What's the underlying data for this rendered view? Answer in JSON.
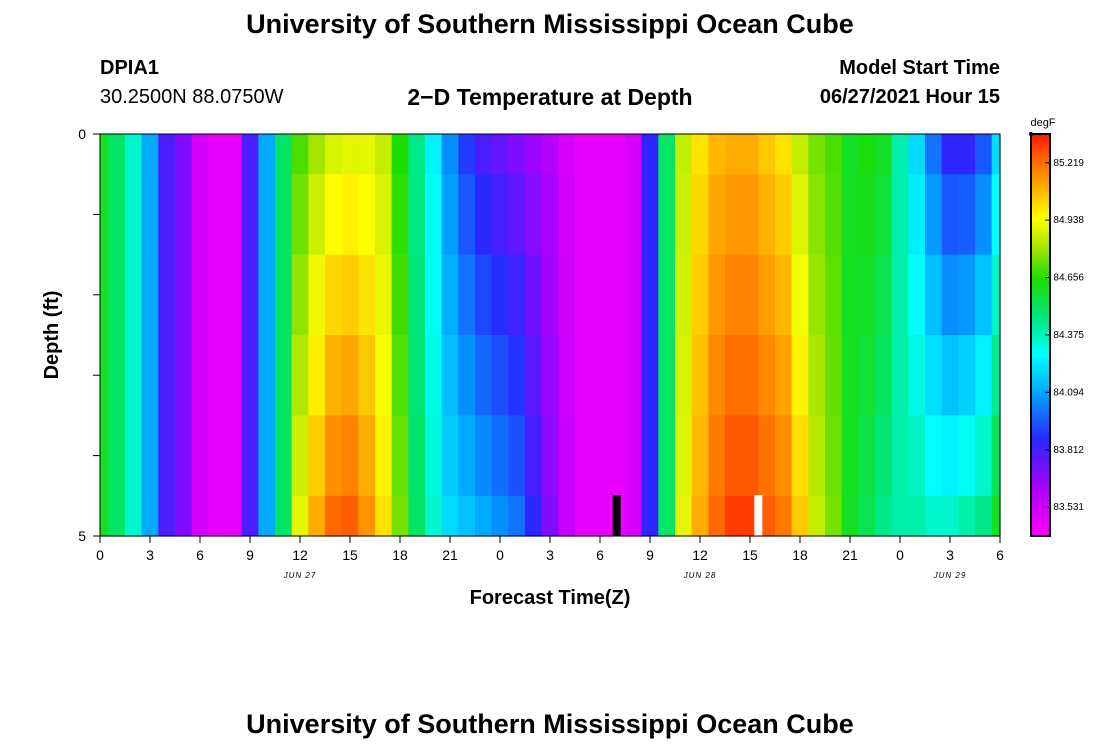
{
  "title_top": "University of Southern Mississippi Ocean Cube",
  "title_bottom": "University of Southern Mississippi Ocean Cube",
  "station": {
    "name": "DPIA1",
    "coords": "30.2500N  88.0750W"
  },
  "model_start": {
    "label": "Model Start Time",
    "value": "06/27/2021 Hour 15"
  },
  "chart_data": {
    "type": "heatmap",
    "title": "2−D Temperature at Depth",
    "xlabel": "Forecast Time(Z)",
    "ylabel": "Depth (ft)",
    "units": "degF",
    "x_start_hour_utc": 0,
    "x_hours_total": 54,
    "x_ticks": [
      "0",
      "3",
      "6",
      "9",
      "12",
      "15",
      "18",
      "21",
      "0",
      "3",
      "6",
      "9",
      "12",
      "15",
      "18",
      "21",
      "0",
      "3",
      "6"
    ],
    "x_tick_hours": [
      0,
      3,
      6,
      9,
      12,
      15,
      18,
      21,
      24,
      27,
      30,
      33,
      36,
      39,
      42,
      45,
      48,
      51,
      54
    ],
    "date_labels": [
      {
        "text": "JUN 27",
        "hour": 12
      },
      {
        "text": "JUN 28",
        "hour": 36
      },
      {
        "text": "JUN 29",
        "hour": 51
      }
    ],
    "y_tick_labels": [
      "0",
      "5"
    ],
    "ylim": [
      0,
      5
    ],
    "colorbar": {
      "ticks": [
        "85.219",
        "84.938",
        "84.656",
        "84.375",
        "84.094",
        "83.812",
        "83.531"
      ],
      "tick_values": [
        85.219,
        84.938,
        84.656,
        84.375,
        84.094,
        83.812,
        83.531
      ],
      "vmin": 83.39,
      "vmax": 85.36
    },
    "markers": [
      {
        "hour": 31.0,
        "color": "#000000"
      },
      {
        "hour": 39.5,
        "color": "#ffffff"
      }
    ],
    "depth_layers": [
      "0-0.5",
      "0.5-1.5",
      "1.5-2.5",
      "2.5-3.5",
      "3.5-4.5",
      "4.5-5"
    ],
    "profile_hours": [
      0,
      1,
      2,
      3,
      4,
      5,
      6,
      7,
      8,
      9,
      10,
      11,
      12,
      13,
      14,
      15,
      16,
      17,
      18,
      19,
      20,
      21,
      22,
      23,
      24,
      25,
      26,
      27,
      28,
      29,
      30,
      31,
      32,
      33,
      34,
      35,
      36,
      37,
      38,
      39,
      40,
      41,
      42,
      43,
      44,
      45,
      46,
      47,
      48,
      49,
      50,
      51,
      52,
      53,
      54
    ],
    "profile_base": [
      84.6,
      84.5,
      84.35,
      84.1,
      83.8,
      83.7,
      83.5,
      83.45,
      83.45,
      83.8,
      84.1,
      84.5,
      84.75,
      84.9,
      84.98,
      85.0,
      84.95,
      84.85,
      84.65,
      84.4,
      84.2,
      84.0,
      83.9,
      83.8,
      83.75,
      83.7,
      83.65,
      83.6,
      83.5,
      83.45,
      83.45,
      83.45,
      83.5,
      83.85,
      84.5,
      84.85,
      85.0,
      85.08,
      85.1,
      85.1,
      85.05,
      85.0,
      84.85,
      84.75,
      84.7,
      84.6,
      84.58,
      84.55,
      84.4,
      84.2,
      84.0,
      83.85,
      83.85,
      83.95,
      84.2
    ],
    "depth_surface_offset": [
      0,
      0,
      0,
      0,
      0,
      0,
      0,
      0,
      0,
      0,
      0,
      0,
      -0.05,
      -0.1,
      -0.1,
      -0.1,
      -0.05,
      0,
      0,
      0.05,
      0.05,
      0.05,
      0,
      0,
      0,
      0,
      0,
      0,
      0,
      0,
      0,
      0,
      0,
      0,
      0,
      0,
      0,
      0,
      0,
      0,
      0,
      0,
      0,
      0,
      0,
      0,
      0.05,
      0.05,
      0,
      0,
      0,
      0,
      0,
      0,
      0
    ],
    "depth_bottom_offset": [
      0,
      0,
      0,
      0,
      0,
      0,
      0,
      0,
      0,
      0,
      0,
      0,
      0.15,
      0.2,
      0.25,
      0.25,
      0.2,
      0.15,
      0.1,
      0.1,
      0.15,
      0.2,
      0.25,
      0.3,
      0.3,
      0.3,
      0.2,
      0.1,
      0.05,
      0,
      0,
      0,
      0,
      0,
      0,
      0.05,
      0.1,
      0.15,
      0.2,
      0.2,
      0.2,
      0.2,
      0.2,
      0.1,
      0.05,
      0,
      -0.05,
      -0.1,
      0,
      0.2,
      0.35,
      0.5,
      0.55,
      0.5,
      0.4
    ]
  }
}
